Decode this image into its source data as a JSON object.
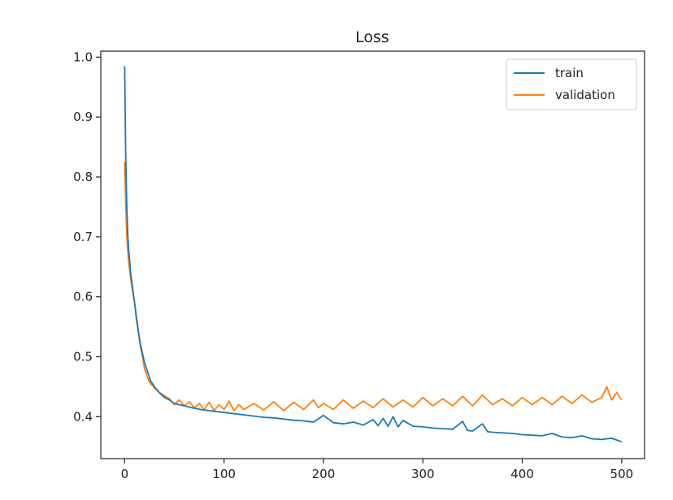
{
  "chart_data": {
    "type": "line",
    "title": "Loss",
    "xlabel": "",
    "ylabel": "",
    "xlim": [
      -24,
      523
    ],
    "ylim": [
      0.33,
      1.01
    ],
    "xticks": [
      0,
      100,
      200,
      300,
      400,
      500
    ],
    "yticks": [
      0.4,
      0.5,
      0.6,
      0.7,
      0.8,
      0.9,
      1.0
    ],
    "xtick_labels": [
      "0",
      "100",
      "200",
      "300",
      "400",
      "500"
    ],
    "ytick_labels": [
      "0.4",
      "0.5",
      "0.6",
      "0.7",
      "0.8",
      "0.9",
      "1.0"
    ],
    "grid": false,
    "legend": "top-right",
    "series": [
      {
        "name": "train",
        "color": "#1f77b4",
        "x": [
          0,
          1,
          2,
          3,
          4,
          5,
          6,
          8,
          10,
          12,
          14,
          16,
          18,
          20,
          23,
          26,
          30,
          35,
          40,
          45,
          50,
          60,
          70,
          80,
          90,
          100,
          110,
          120,
          130,
          140,
          150,
          160,
          170,
          180,
          190,
          200,
          210,
          220,
          230,
          240,
          250,
          255,
          260,
          265,
          270,
          275,
          280,
          290,
          300,
          310,
          320,
          330,
          340,
          345,
          350,
          360,
          365,
          370,
          380,
          390,
          400,
          410,
          420,
          430,
          440,
          450,
          460,
          470,
          480,
          490,
          500
        ],
        "y": [
          0.985,
          0.84,
          0.76,
          0.71,
          0.68,
          0.66,
          0.64,
          0.615,
          0.59,
          0.565,
          0.54,
          0.52,
          0.505,
          0.49,
          0.475,
          0.46,
          0.45,
          0.44,
          0.432,
          0.428,
          0.422,
          0.418,
          0.414,
          0.411,
          0.409,
          0.407,
          0.405,
          0.403,
          0.401,
          0.399,
          0.398,
          0.396,
          0.394,
          0.393,
          0.391,
          0.402,
          0.39,
          0.388,
          0.391,
          0.386,
          0.395,
          0.385,
          0.397,
          0.384,
          0.4,
          0.383,
          0.394,
          0.384,
          0.383,
          0.381,
          0.38,
          0.379,
          0.392,
          0.377,
          0.376,
          0.388,
          0.375,
          0.374,
          0.373,
          0.372,
          0.37,
          0.369,
          0.368,
          0.372,
          0.366,
          0.365,
          0.368,
          0.363,
          0.362,
          0.364,
          0.358
        ]
      },
      {
        "name": "validation",
        "color": "#ff7f0e",
        "x": [
          0,
          1,
          2,
          3,
          4,
          5,
          6,
          8,
          10,
          12,
          14,
          16,
          18,
          20,
          23,
          26,
          30,
          35,
          40,
          45,
          50,
          55,
          60,
          65,
          70,
          75,
          80,
          85,
          90,
          95,
          100,
          105,
          110,
          115,
          120,
          130,
          140,
          150,
          160,
          170,
          180,
          190,
          195,
          200,
          210,
          220,
          230,
          240,
          250,
          260,
          270,
          280,
          290,
          300,
          310,
          320,
          330,
          340,
          350,
          360,
          370,
          380,
          390,
          400,
          410,
          420,
          430,
          440,
          450,
          460,
          470,
          480,
          485,
          490,
          495,
          500
        ],
        "y": [
          0.825,
          0.76,
          0.71,
          0.68,
          0.66,
          0.645,
          0.63,
          0.61,
          0.59,
          0.56,
          0.54,
          0.515,
          0.5,
          0.48,
          0.465,
          0.455,
          0.448,
          0.44,
          0.435,
          0.43,
          0.42,
          0.428,
          0.418,
          0.425,
          0.415,
          0.422,
          0.412,
          0.424,
          0.41,
          0.42,
          0.412,
          0.426,
          0.41,
          0.42,
          0.412,
          0.422,
          0.411,
          0.425,
          0.41,
          0.424,
          0.412,
          0.428,
          0.415,
          0.422,
          0.412,
          0.428,
          0.414,
          0.426,
          0.415,
          0.43,
          0.416,
          0.428,
          0.416,
          0.432,
          0.418,
          0.43,
          0.418,
          0.434,
          0.418,
          0.436,
          0.42,
          0.43,
          0.418,
          0.432,
          0.42,
          0.432,
          0.42,
          0.434,
          0.422,
          0.436,
          0.424,
          0.432,
          0.45,
          0.428,
          0.44,
          0.428
        ]
      }
    ]
  }
}
